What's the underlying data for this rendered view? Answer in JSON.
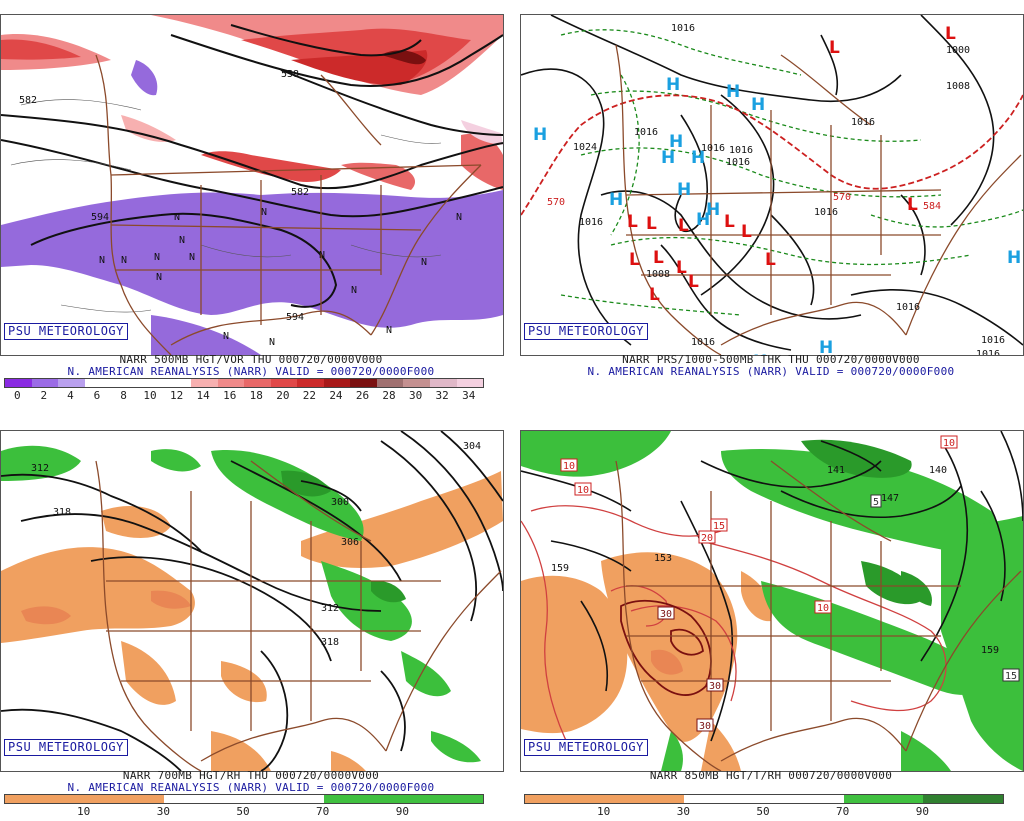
{
  "panels": [
    {
      "id": "p500",
      "badge": "PSU METEOROLOGY",
      "caption1": "NARR 500MB HGT/VOR THU 000720/0000V000",
      "caption2": "N. AMERICAN REANALYSIS (NARR) VALID = 000720/0000F000",
      "colorbar": {
        "labels": [
          "0",
          "2",
          "4",
          "6",
          "8",
          "10",
          "12",
          "14",
          "16",
          "18",
          "20",
          "22",
          "24",
          "26",
          "28",
          "30",
          "32",
          "34"
        ],
        "colors": [
          "#8a2be2",
          "#9b6be6",
          "#b9a0ee",
          "#ffffff",
          "#ffffff",
          "#ffffff",
          "#ffffff",
          "#f7b0b0",
          "#f08a8a",
          "#e86868",
          "#e04848",
          "#cc2a2a",
          "#a81818",
          "#7a1010",
          "#a07070",
          "#c49090",
          "#e0b8c8",
          "#f4d0e0"
        ]
      },
      "contour_labels": [
        "582",
        "582",
        "558",
        "594",
        "594"
      ],
      "vort_marks": [
        "N",
        "N",
        "N",
        "N",
        "N",
        "N",
        "N",
        "N",
        "N",
        "N",
        "N",
        "N",
        "N",
        "N",
        "N"
      ]
    },
    {
      "id": "pprs",
      "badge": "PSU METEOROLOGY",
      "caption1": "NARR PRS/1000-500MB THK THU 000720/0000V000",
      "caption2": "N. AMERICAN REANALYSIS (NARR) VALID = 000720/0000F000",
      "high_symbol": "H",
      "low_symbol": "L",
      "pressure_labels": [
        "1016",
        "1016",
        "1016",
        "1016",
        "1016",
        "1016",
        "1016",
        "1016",
        "1008",
        "1000",
        "1008",
        "1024",
        "1016",
        "1016",
        "1016",
        "1016"
      ],
      "thickness_labels": [
        "570",
        "570",
        "584"
      ]
    },
    {
      "id": "p700",
      "badge": "PSU METEOROLOGY",
      "caption1": "NARR 700MB HGT/RH THU 000720/0000V000",
      "caption2": "N. AMERICAN REANALYSIS (NARR) VALID = 000720/0000F000",
      "colorbar": {
        "labels": [
          "10",
          "30",
          "50",
          "70",
          "90"
        ],
        "colors": [
          "#f0a060",
          "#f0a060",
          "#ffffff",
          "#ffffff",
          "#40c040",
          "#40c040"
        ]
      },
      "contour_labels": [
        "312",
        "318",
        "300",
        "306",
        "312",
        "318",
        "304"
      ]
    },
    {
      "id": "p850",
      "badge": "PSU METEOROLOGY",
      "caption1": "NARR 850MB HGT/T/RH 000720/0000V000",
      "colorbar": {
        "labels": [
          "10",
          "30",
          "50",
          "70",
          "90"
        ],
        "colors": [
          "#f0a060",
          "#f0a060",
          "#ffffff",
          "#ffffff",
          "#40c040",
          "#308030"
        ]
      },
      "contour_labels": [
        "159",
        "153",
        "141",
        "140",
        "147",
        "159"
      ],
      "temp_boxes": [
        "10",
        "10",
        "10",
        "15",
        "20",
        "30",
        "30",
        "30",
        "10",
        "15",
        "10",
        "5"
      ]
    }
  ]
}
